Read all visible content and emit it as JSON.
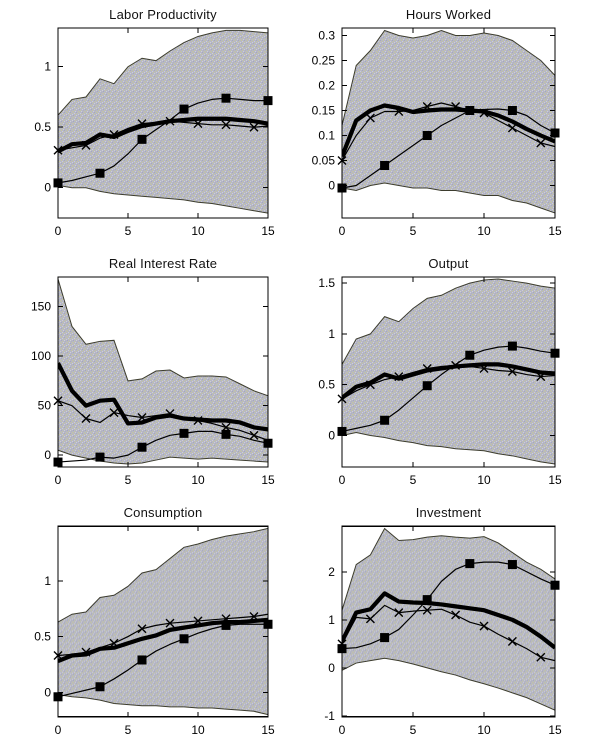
{
  "figure": {
    "background": "#ffffff",
    "line_color": "#000000",
    "axis_color": "#000000",
    "band_fill": "#b6b7c5",
    "band_speckle_light": "#cdced9",
    "band_speckle_olive": "#c6c79a",
    "band_speckle_dark": "#a7a9ba",
    "band_edge": "#3c3c2e"
  },
  "chart_data": [
    {
      "type": "line",
      "title": "Labor Productivity",
      "xlim": [
        0,
        15
      ],
      "ylim": [
        -0.25,
        1.32
      ],
      "x_ticks": [
        0,
        5,
        10,
        15
      ],
      "x_tick_labels": [
        "0",
        "5",
        "10",
        "15"
      ],
      "y_ticks": [
        0,
        0.5,
        1
      ],
      "y_tick_labels": [
        "0",
        "0.5",
        "1"
      ],
      "x": [
        0,
        1,
        2,
        3,
        4,
        5,
        6,
        7,
        8,
        9,
        10,
        11,
        12,
        13,
        14,
        15
      ],
      "x_markers": [
        0,
        2,
        4,
        6,
        8,
        10,
        12,
        14
      ],
      "square_markers": [
        0,
        3,
        6,
        9,
        12,
        15
      ],
      "series": [
        {
          "name": "band_upper",
          "values": [
            0.6,
            0.73,
            0.75,
            0.9,
            0.86,
            1.0,
            1.07,
            1.05,
            1.13,
            1.2,
            1.25,
            1.28,
            1.3,
            1.3,
            1.29,
            1.28
          ]
        },
        {
          "name": "band_lower",
          "values": [
            0.02,
            0.0,
            0.0,
            -0.03,
            -0.05,
            -0.06,
            -0.07,
            -0.08,
            -0.09,
            -0.1,
            -0.12,
            -0.13,
            -0.15,
            -0.17,
            -0.19,
            -0.21
          ]
        },
        {
          "name": "thick_line",
          "values": [
            0.3,
            0.36,
            0.37,
            0.44,
            0.42,
            0.47,
            0.51,
            0.53,
            0.55,
            0.56,
            0.57,
            0.57,
            0.57,
            0.56,
            0.55,
            0.53
          ]
        },
        {
          "name": "x_marker_line",
          "values": [
            0.31,
            0.33,
            0.35,
            0.41,
            0.44,
            0.49,
            0.53,
            0.54,
            0.55,
            0.54,
            0.53,
            0.52,
            0.52,
            0.51,
            0.5,
            0.51
          ]
        },
        {
          "name": "square_marker_line",
          "values": [
            0.04,
            0.06,
            0.09,
            0.12,
            0.18,
            0.28,
            0.4,
            0.48,
            0.56,
            0.65,
            0.7,
            0.73,
            0.74,
            0.73,
            0.72,
            0.72
          ]
        }
      ]
    },
    {
      "type": "line",
      "title": "Hours Worked",
      "xlim": [
        0,
        15
      ],
      "ylim": [
        -0.065,
        0.315
      ],
      "x_ticks": [
        0,
        5,
        10,
        15
      ],
      "x_tick_labels": [
        "0",
        "5",
        "10",
        "15"
      ],
      "y_ticks": [
        0,
        0.05,
        0.1,
        0.15,
        0.2,
        0.25,
        0.3
      ],
      "y_tick_labels": [
        "0",
        "0.05",
        "0.1",
        "0.15",
        "0.2",
        "0.25",
        "0.3"
      ],
      "x": [
        0,
        1,
        2,
        3,
        4,
        5,
        6,
        7,
        8,
        9,
        10,
        11,
        12,
        13,
        14,
        15
      ],
      "x_markers": [
        0,
        2,
        4,
        6,
        8,
        10,
        12,
        14
      ],
      "square_markers": [
        0,
        3,
        6,
        9,
        12,
        15
      ],
      "series": [
        {
          "name": "band_upper",
          "values": [
            0.12,
            0.24,
            0.27,
            0.31,
            0.3,
            0.295,
            0.3,
            0.31,
            0.3,
            0.3,
            0.305,
            0.3,
            0.29,
            0.27,
            0.25,
            0.22
          ]
        },
        {
          "name": "band_lower",
          "values": [
            -0.005,
            -0.01,
            0.0,
            0.005,
            0.0,
            -0.005,
            -0.005,
            -0.01,
            -0.01,
            -0.015,
            -0.02,
            -0.02,
            -0.03,
            -0.035,
            -0.045,
            -0.055
          ]
        },
        {
          "name": "thick_line",
          "values": [
            0.058,
            0.13,
            0.15,
            0.16,
            0.155,
            0.147,
            0.15,
            0.152,
            0.152,
            0.15,
            0.148,
            0.14,
            0.128,
            0.113,
            0.1,
            0.088
          ]
        },
        {
          "name": "x_marker_line",
          "values": [
            0.05,
            0.1,
            0.135,
            0.148,
            0.148,
            0.15,
            0.158,
            0.165,
            0.158,
            0.15,
            0.145,
            0.13,
            0.115,
            0.1,
            0.085,
            0.078
          ]
        },
        {
          "name": "square_marker_line",
          "values": [
            -0.005,
            0.0,
            0.02,
            0.04,
            0.06,
            0.08,
            0.1,
            0.12,
            0.135,
            0.15,
            0.152,
            0.153,
            0.15,
            0.14,
            0.12,
            0.105
          ]
        }
      ]
    },
    {
      "type": "line",
      "title": "Real Interest Rate",
      "xlim": [
        0,
        15
      ],
      "ylim": [
        -12,
        180
      ],
      "x_ticks": [
        0,
        5,
        10,
        15
      ],
      "x_tick_labels": [
        "0",
        "5",
        "10",
        "15"
      ],
      "y_ticks": [
        0,
        50,
        100,
        150
      ],
      "y_tick_labels": [
        "0",
        "50",
        "100",
        "150"
      ],
      "x": [
        0,
        1,
        2,
        3,
        4,
        5,
        6,
        7,
        8,
        9,
        10,
        11,
        12,
        13,
        14,
        15
      ],
      "x_markers": [
        0,
        2,
        4,
        6,
        8,
        10,
        12,
        14
      ],
      "square_markers": [
        0,
        3,
        6,
        9,
        12,
        15
      ],
      "series": [
        {
          "name": "band_upper",
          "values": [
            178,
            130,
            112,
            115,
            116,
            75,
            77,
            85,
            86,
            78,
            80,
            80,
            79,
            72,
            65,
            60
          ]
        },
        {
          "name": "band_lower",
          "values": [
            5,
            0,
            -3,
            -6,
            -8,
            -9,
            -8,
            -5,
            -2,
            -3,
            -4,
            -3,
            -4,
            -5,
            -6,
            -7
          ]
        },
        {
          "name": "thick_line",
          "values": [
            93,
            65,
            50,
            55,
            56,
            32,
            33,
            38,
            40,
            37,
            36,
            35,
            35,
            33,
            28,
            26
          ]
        },
        {
          "name": "x_marker_line",
          "values": [
            55,
            50,
            37,
            33,
            43,
            40,
            38,
            40,
            42,
            38,
            35,
            32,
            28,
            25,
            20,
            15
          ]
        },
        {
          "name": "square_marker_line",
          "values": [
            -7,
            -6,
            -5,
            -2,
            -3,
            0,
            8,
            15,
            20,
            22,
            24,
            24,
            21,
            19,
            15,
            12
          ]
        }
      ]
    },
    {
      "type": "line",
      "title": "Output",
      "xlim": [
        0,
        15
      ],
      "ylim": [
        -0.31,
        1.56
      ],
      "x_ticks": [
        0,
        5,
        10,
        15
      ],
      "x_tick_labels": [
        "0",
        "5",
        "10",
        "15"
      ],
      "y_ticks": [
        0,
        0.5,
        1,
        1.5
      ],
      "y_tick_labels": [
        "0",
        "0.5",
        "1",
        "1.5"
      ],
      "x": [
        0,
        1,
        2,
        3,
        4,
        5,
        6,
        7,
        8,
        9,
        10,
        11,
        12,
        13,
        14,
        15
      ],
      "x_markers": [
        0,
        2,
        4,
        6,
        8,
        10,
        12,
        14
      ],
      "square_markers": [
        0,
        3,
        6,
        9,
        12,
        15
      ],
      "series": [
        {
          "name": "band_upper",
          "values": [
            0.7,
            0.95,
            1.0,
            1.17,
            1.12,
            1.25,
            1.35,
            1.38,
            1.45,
            1.5,
            1.53,
            1.54,
            1.52,
            1.5,
            1.47,
            1.45
          ]
        },
        {
          "name": "band_lower",
          "values": [
            0.0,
            0.03,
            0.0,
            -0.02,
            -0.05,
            -0.07,
            -0.1,
            -0.11,
            -0.13,
            -0.14,
            -0.15,
            -0.18,
            -0.2,
            -0.23,
            -0.26,
            -0.28
          ]
        },
        {
          "name": "thick_line",
          "values": [
            0.37,
            0.48,
            0.52,
            0.6,
            0.56,
            0.6,
            0.64,
            0.66,
            0.68,
            0.69,
            0.7,
            0.7,
            0.68,
            0.65,
            0.62,
            0.61
          ]
        },
        {
          "name": "x_marker_line",
          "values": [
            0.36,
            0.44,
            0.5,
            0.55,
            0.58,
            0.62,
            0.66,
            0.68,
            0.69,
            0.68,
            0.66,
            0.64,
            0.63,
            0.6,
            0.58,
            0.59
          ]
        },
        {
          "name": "square_marker_line",
          "values": [
            0.04,
            0.07,
            0.1,
            0.15,
            0.25,
            0.37,
            0.49,
            0.6,
            0.7,
            0.79,
            0.84,
            0.87,
            0.88,
            0.86,
            0.83,
            0.81
          ]
        }
      ]
    },
    {
      "type": "line",
      "title": "Consumption",
      "xlim": [
        0,
        15
      ],
      "ylim": [
        -0.22,
        1.49
      ],
      "x_ticks": [
        0,
        5,
        10,
        15
      ],
      "x_tick_labels": [
        "0",
        "5",
        "10",
        "15"
      ],
      "y_ticks": [
        0,
        0.5,
        1
      ],
      "y_tick_labels": [
        "0",
        "0.5",
        "1"
      ],
      "x": [
        0,
        1,
        2,
        3,
        4,
        5,
        6,
        7,
        8,
        9,
        10,
        11,
        12,
        13,
        14,
        15
      ],
      "x_markers": [
        0,
        2,
        4,
        6,
        8,
        10,
        12,
        14
      ],
      "square_markers": [
        0,
        3,
        6,
        9,
        12,
        15
      ],
      "series": [
        {
          "name": "band_upper",
          "values": [
            0.63,
            0.7,
            0.72,
            0.85,
            0.87,
            0.95,
            1.07,
            1.1,
            1.2,
            1.3,
            1.33,
            1.37,
            1.4,
            1.42,
            1.44,
            1.47
          ]
        },
        {
          "name": "band_lower",
          "values": [
            -0.02,
            -0.04,
            -0.05,
            -0.07,
            -0.1,
            -0.11,
            -0.12,
            -0.12,
            -0.13,
            -0.13,
            -0.14,
            -0.14,
            -0.15,
            -0.16,
            -0.17,
            -0.2
          ]
        },
        {
          "name": "thick_line",
          "values": [
            0.28,
            0.33,
            0.34,
            0.39,
            0.4,
            0.44,
            0.48,
            0.51,
            0.56,
            0.58,
            0.6,
            0.62,
            0.63,
            0.63,
            0.64,
            0.65
          ]
        },
        {
          "name": "x_marker_line",
          "values": [
            0.33,
            0.34,
            0.36,
            0.4,
            0.44,
            0.5,
            0.57,
            0.6,
            0.62,
            0.63,
            0.64,
            0.65,
            0.66,
            0.67,
            0.68,
            0.7
          ]
        },
        {
          "name": "square_marker_line",
          "values": [
            -0.04,
            -0.01,
            0.02,
            0.05,
            0.12,
            0.2,
            0.29,
            0.37,
            0.43,
            0.48,
            0.53,
            0.57,
            0.6,
            0.61,
            0.61,
            0.61
          ]
        }
      ]
    },
    {
      "type": "line",
      "title": "Investment",
      "xlim": [
        0,
        15
      ],
      "ylim": [
        -1.02,
        2.95
      ],
      "x_ticks": [
        0,
        5,
        10,
        15
      ],
      "x_tick_labels": [
        "0",
        "5",
        "10",
        "15"
      ],
      "y_ticks": [
        -1,
        0,
        1,
        2
      ],
      "y_tick_labels": [
        "-1",
        "0",
        "1",
        "2"
      ],
      "x": [
        0,
        1,
        2,
        3,
        4,
        5,
        6,
        7,
        8,
        9,
        10,
        11,
        12,
        13,
        14,
        15
      ],
      "x_markers": [
        0,
        2,
        4,
        6,
        8,
        10,
        12,
        14
      ],
      "square_markers": [
        0,
        3,
        6,
        9,
        12,
        15
      ],
      "series": [
        {
          "name": "band_upper",
          "values": [
            1.2,
            2.15,
            2.35,
            2.9,
            2.65,
            2.67,
            2.72,
            2.75,
            2.72,
            2.7,
            2.73,
            2.6,
            2.4,
            2.2,
            2.05,
            1.85
          ]
        },
        {
          "name": "band_lower",
          "values": [
            -0.05,
            0.1,
            0.15,
            0.2,
            0.15,
            0.08,
            0.0,
            -0.08,
            -0.15,
            -0.25,
            -0.33,
            -0.42,
            -0.52,
            -0.62,
            -0.75,
            -0.88
          ]
        },
        {
          "name": "thick_line",
          "values": [
            0.55,
            1.15,
            1.22,
            1.55,
            1.38,
            1.36,
            1.35,
            1.32,
            1.28,
            1.24,
            1.2,
            1.1,
            1.0,
            0.85,
            0.65,
            0.42
          ]
        },
        {
          "name": "x_marker_line",
          "values": [
            0.5,
            1.05,
            1.02,
            1.3,
            1.15,
            1.18,
            1.2,
            1.22,
            1.1,
            0.95,
            0.87,
            0.7,
            0.55,
            0.4,
            0.22,
            0.15
          ]
        },
        {
          "name": "square_marker_line",
          "values": [
            0.4,
            0.42,
            0.5,
            0.63,
            0.8,
            1.1,
            1.42,
            1.8,
            2.05,
            2.17,
            2.2,
            2.2,
            2.15,
            2.0,
            1.85,
            1.72
          ]
        }
      ]
    }
  ]
}
